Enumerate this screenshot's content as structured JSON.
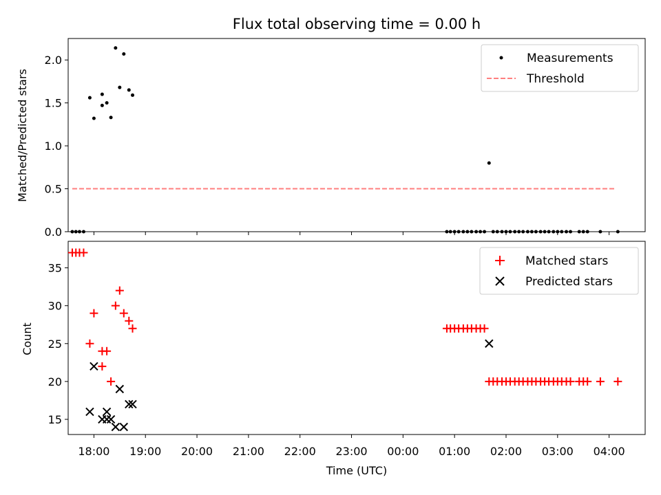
{
  "chart_data": [
    {
      "type": "scatter",
      "title": "Flux total observing time = 0.00 h",
      "ylabel": "Matched/Predicted stars",
      "xlabel": "",
      "x_unit": "hours since 17:00 UTC (times after midnight use 24+)",
      "xlim": [
        17.5,
        28.7
      ],
      "ylim": [
        0,
        2.25
      ],
      "yticks": [
        0.0,
        0.5,
        1.0,
        1.5,
        2.0
      ],
      "ytick_labels": [
        "0.0",
        "0.5",
        "1.0",
        "1.5",
        "2.0"
      ],
      "legend": {
        "placement": "top-right"
      },
      "series": [
        {
          "name": "Measurements",
          "color": "#000000",
          "marker": "dot",
          "points": [
            [
              17.58,
              0
            ],
            [
              17.65,
              0
            ],
            [
              17.72,
              0
            ],
            [
              17.8,
              0
            ],
            [
              17.92,
              1.56
            ],
            [
              18.0,
              1.32
            ],
            [
              18.16,
              1.6
            ],
            [
              18.16,
              1.47
            ],
            [
              18.25,
              1.5
            ],
            [
              18.33,
              1.33
            ],
            [
              18.42,
              2.14
            ],
            [
              18.5,
              1.68
            ],
            [
              18.58,
              2.07
            ],
            [
              18.68,
              1.65
            ],
            [
              18.75,
              1.59
            ],
            [
              24.85,
              0
            ],
            [
              24.92,
              0
            ],
            [
              25.0,
              0
            ],
            [
              25.08,
              0
            ],
            [
              25.17,
              0
            ],
            [
              25.25,
              0
            ],
            [
              25.33,
              0
            ],
            [
              25.42,
              0
            ],
            [
              25.5,
              0
            ],
            [
              25.58,
              0
            ],
            [
              25.67,
              0.8
            ],
            [
              25.75,
              0
            ],
            [
              25.83,
              0
            ],
            [
              25.92,
              0
            ],
            [
              26.0,
              0
            ],
            [
              26.08,
              0
            ],
            [
              26.17,
              0
            ],
            [
              26.25,
              0
            ],
            [
              26.33,
              0
            ],
            [
              26.42,
              0
            ],
            [
              26.5,
              0
            ],
            [
              26.58,
              0
            ],
            [
              26.67,
              0
            ],
            [
              26.75,
              0
            ],
            [
              26.83,
              0
            ],
            [
              26.92,
              0
            ],
            [
              27.0,
              0
            ],
            [
              27.08,
              0
            ],
            [
              27.17,
              0
            ],
            [
              27.25,
              0
            ],
            [
              27.42,
              0
            ],
            [
              27.5,
              0
            ],
            [
              27.58,
              0
            ],
            [
              27.83,
              0
            ],
            [
              28.17,
              0
            ]
          ]
        },
        {
          "name": "Threshold",
          "color": "#ff7f7f",
          "style": "dashed",
          "x": [
            17.58,
            28.1
          ],
          "y": [
            0.5,
            0.5
          ]
        }
      ]
    },
    {
      "type": "scatter",
      "title": "",
      "ylabel": "Count",
      "xlabel": "Time (UTC)",
      "xlim": [
        17.5,
        28.7
      ],
      "ylim": [
        13,
        38.5
      ],
      "yticks": [
        15,
        20,
        25,
        30,
        35
      ],
      "ytick_labels": [
        "15",
        "20",
        "25",
        "30",
        "35"
      ],
      "xticks": [
        18,
        19,
        20,
        21,
        22,
        23,
        24,
        25,
        26,
        27,
        28
      ],
      "xtick_labels": [
        "18:00",
        "19:00",
        "20:00",
        "21:00",
        "22:00",
        "23:00",
        "00:00",
        "01:00",
        "02:00",
        "03:00",
        "04:00"
      ],
      "legend": {
        "placement": "top-right"
      },
      "series": [
        {
          "name": "Matched stars",
          "color": "#ff0000",
          "marker": "plus",
          "points": [
            [
              17.58,
              37
            ],
            [
              17.65,
              37
            ],
            [
              17.72,
              37
            ],
            [
              17.8,
              37
            ],
            [
              17.92,
              25
            ],
            [
              18.0,
              29
            ],
            [
              18.16,
              24
            ],
            [
              18.16,
              22
            ],
            [
              18.25,
              24
            ],
            [
              18.33,
              20
            ],
            [
              18.42,
              30
            ],
            [
              18.5,
              32
            ],
            [
              18.58,
              29
            ],
            [
              18.68,
              28
            ],
            [
              18.75,
              27
            ],
            [
              24.85,
              27
            ],
            [
              24.92,
              27
            ],
            [
              25.0,
              27
            ],
            [
              25.08,
              27
            ],
            [
              25.17,
              27
            ],
            [
              25.25,
              27
            ],
            [
              25.33,
              27
            ],
            [
              25.42,
              27
            ],
            [
              25.5,
              27
            ],
            [
              25.58,
              27
            ],
            [
              25.67,
              20
            ],
            [
              25.75,
              20
            ],
            [
              25.83,
              20
            ],
            [
              25.92,
              20
            ],
            [
              26.0,
              20
            ],
            [
              26.08,
              20
            ],
            [
              26.17,
              20
            ],
            [
              26.25,
              20
            ],
            [
              26.33,
              20
            ],
            [
              26.42,
              20
            ],
            [
              26.5,
              20
            ],
            [
              26.58,
              20
            ],
            [
              26.67,
              20
            ],
            [
              26.75,
              20
            ],
            [
              26.83,
              20
            ],
            [
              26.92,
              20
            ],
            [
              27.0,
              20
            ],
            [
              27.08,
              20
            ],
            [
              27.17,
              20
            ],
            [
              27.25,
              20
            ],
            [
              27.42,
              20
            ],
            [
              27.5,
              20
            ],
            [
              27.58,
              20
            ],
            [
              27.83,
              20
            ],
            [
              28.17,
              20
            ]
          ]
        },
        {
          "name": "Predicted stars",
          "color": "#000000",
          "marker": "x",
          "points": [
            [
              17.92,
              16
            ],
            [
              18.0,
              22
            ],
            [
              18.16,
              15
            ],
            [
              18.25,
              16
            ],
            [
              18.25,
              15
            ],
            [
              18.33,
              15
            ],
            [
              18.42,
              14
            ],
            [
              18.5,
              19
            ],
            [
              18.58,
              14
            ],
            [
              18.68,
              17
            ],
            [
              18.75,
              17
            ],
            [
              25.67,
              25
            ]
          ]
        }
      ]
    }
  ]
}
